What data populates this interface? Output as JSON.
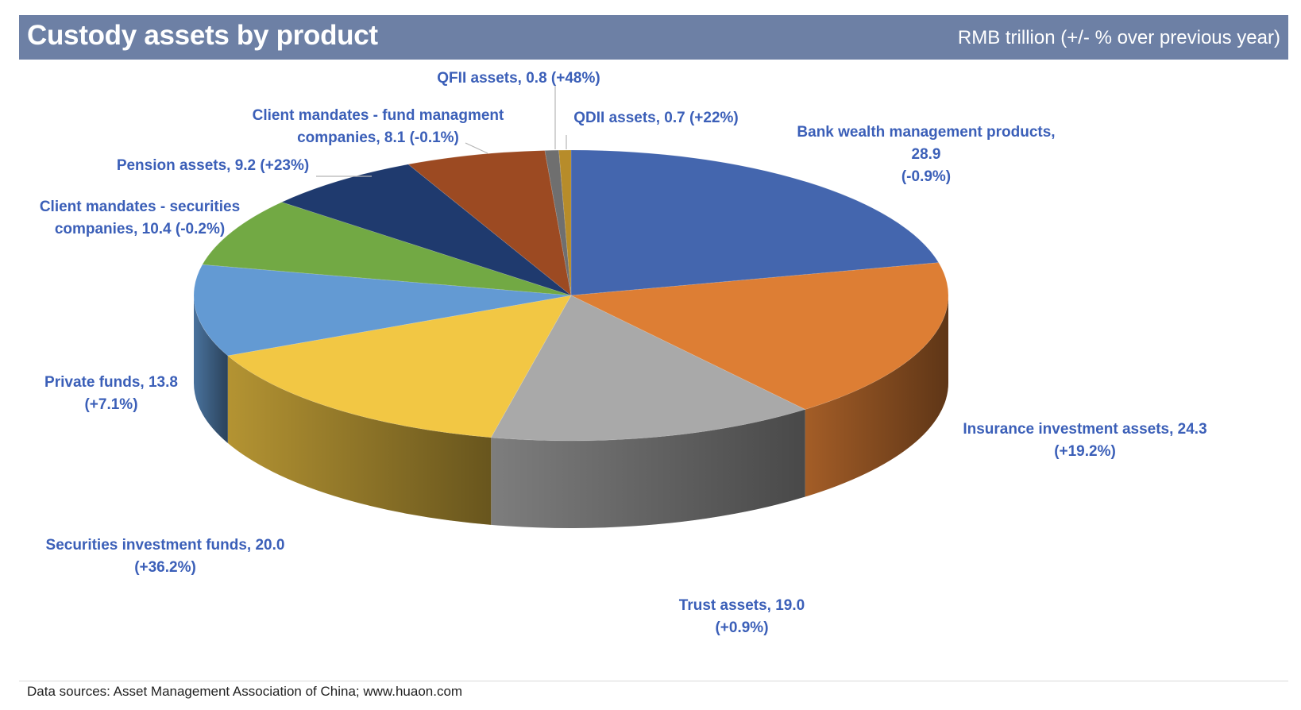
{
  "header": {
    "title": "Custody assets by product",
    "subtitle": "RMB trillion (+/- % over previous year)"
  },
  "chart_data": {
    "type": "pie",
    "variant": "3d",
    "title": "Custody assets by product",
    "unit": "RMB trillion (+/- % over previous year)",
    "slices": [
      {
        "name": "Bank wealth management products",
        "value": 28.9,
        "change": "-0.9%",
        "color": "#4466ae",
        "label_lines": [
          "Bank wealth management products,",
          "28.9",
          "(-0.9%)"
        ]
      },
      {
        "name": "Insurance investment assets",
        "value": 24.3,
        "change": "+19.2%",
        "color": "#dd7e34",
        "label_lines": [
          "Insurance investment assets, 24.3",
          "(+19.2%)"
        ]
      },
      {
        "name": "Trust assets",
        "value": 19.0,
        "change": "+0.9%",
        "color": "#a9a9a9",
        "label_lines": [
          "Trust assets, 19.0",
          "(+0.9%)"
        ]
      },
      {
        "name": "Securities investment funds",
        "value": 20.0,
        "change": "+36.2%",
        "color": "#f2c744",
        "label_lines": [
          "Securities investment funds, 20.0",
          "(+36.2%)"
        ]
      },
      {
        "name": "Private funds",
        "value": 13.8,
        "change": "+7.1%",
        "color": "#639ad3",
        "label_lines": [
          "Private funds, 13.8",
          "(+7.1%)"
        ]
      },
      {
        "name": "Client mandates - securities companies",
        "value": 10.4,
        "change": "-0.2%",
        "color": "#72a944",
        "label_lines": [
          "Client mandates - securities",
          "companies, 10.4 (-0.2%)"
        ]
      },
      {
        "name": "Pension assets",
        "value": 9.2,
        "change": "+23%",
        "color": "#1f3a6e",
        "label_lines": [
          "Pension assets, 9.2 (+23%)"
        ]
      },
      {
        "name": "Client mandates - fund managment companies",
        "value": 8.1,
        "change": "-0.1%",
        "color": "#9c4a22",
        "label_lines": [
          "Client mandates - fund managment",
          "companies, 8.1 (-0.1%)"
        ]
      },
      {
        "name": "QFII assets",
        "value": 0.8,
        "change": "+48%",
        "color": "#6f6f6f",
        "label_lines": [
          "QFII assets, 0.8 (+48%)"
        ]
      },
      {
        "name": "QDII assets",
        "value": 0.7,
        "change": "+22%",
        "color": "#b78c2a",
        "label_lines": [
          "QDII assets, 0.7 (+22%)"
        ]
      }
    ]
  },
  "footer": {
    "source": "Data sources: Asset Management Association of China; www.huaon.com"
  }
}
